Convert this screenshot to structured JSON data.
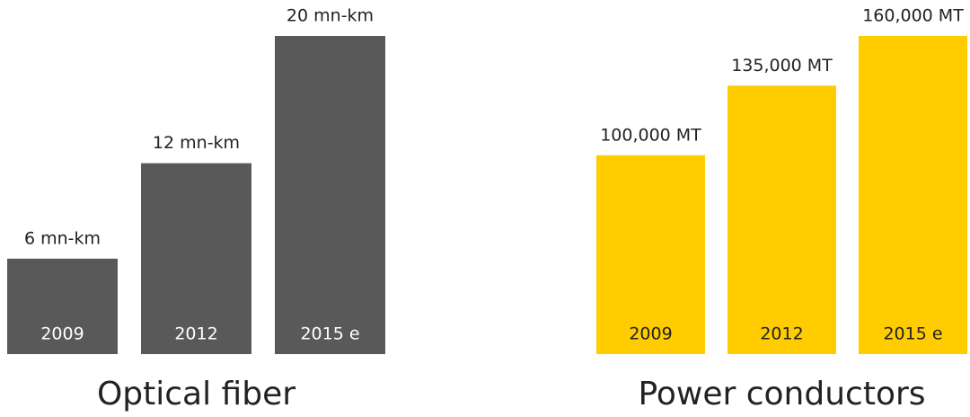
{
  "chart_data": [
    {
      "type": "bar",
      "title": "Optical fiber",
      "categories": [
        "2009",
        "2012",
        "2015 e"
      ],
      "values": [
        6,
        12,
        20
      ],
      "value_labels": [
        "6 mn-km",
        "12 mn-km",
        "20 mn-km"
      ],
      "color": "#595959",
      "label_color": "#ffffff",
      "ylim": [
        0,
        20
      ]
    },
    {
      "type": "bar",
      "title": "Power conductors",
      "categories": [
        "2009",
        "2012",
        "2015 e"
      ],
      "values": [
        100000,
        135000,
        160000
      ],
      "value_labels": [
        "100,000 MT",
        "135,000 MT",
        "160,000 MT"
      ],
      "color": "#ffcc00",
      "label_color": "#222222",
      "ylim": [
        0,
        160000
      ]
    }
  ]
}
